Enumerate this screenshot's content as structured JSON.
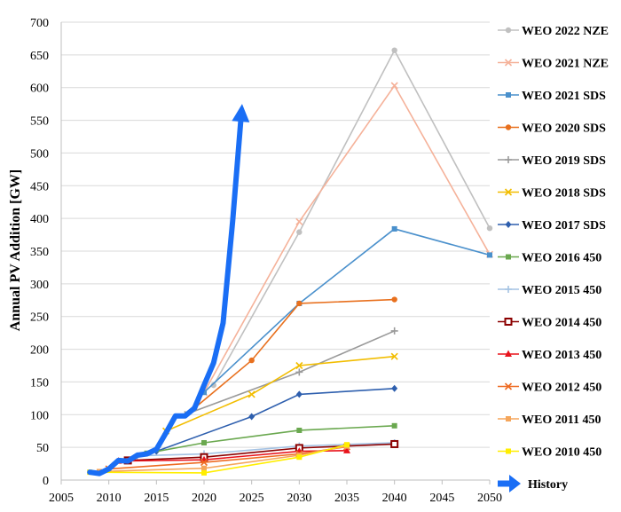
{
  "chart_data": {
    "type": "line",
    "title": "",
    "xlabel": "",
    "ylabel": "Annual PV Addition [GW]",
    "xlim": [
      2005,
      2050
    ],
    "ylim": [
      0,
      700
    ],
    "xticks": [
      2005,
      2010,
      2015,
      2020,
      2025,
      2030,
      2035,
      2040,
      2045,
      2050
    ],
    "yticks": [
      0,
      50,
      100,
      150,
      200,
      250,
      300,
      350,
      400,
      450,
      500,
      550,
      600,
      650,
      700
    ],
    "grid": "horizontal",
    "legend_position": "right",
    "series": [
      {
        "name": "WEO 2022 NZE",
        "color": "#c0c0c0",
        "marker": "circle",
        "x": [
          2021,
          2030,
          2040,
          2050
        ],
        "y": [
          145,
          379,
          657,
          385
        ]
      },
      {
        "name": "WEO 2021 NZE",
        "color": "#f5b29a",
        "marker": "x",
        "x": [
          2020,
          2030,
          2040,
          2050
        ],
        "y": [
          134,
          395,
          603,
          345
        ]
      },
      {
        "name": "WEO 2021 SDS",
        "color": "#4a90cc",
        "marker": "square",
        "x": [
          2020,
          2030,
          2040,
          2050
        ],
        "y": [
          134,
          270,
          384,
          344
        ]
      },
      {
        "name": "WEO 2020 SDS",
        "color": "#e8701e",
        "marker": "circle",
        "x": [
          2019,
          2025,
          2030,
          2040
        ],
        "y": [
          110,
          183,
          270,
          276
        ]
      },
      {
        "name": "WEO 2019 SDS",
        "color": "#9a9a9a",
        "marker": "plus",
        "x": [
          2018,
          2030,
          2040
        ],
        "y": [
          100,
          165,
          228
        ]
      },
      {
        "name": "WEO 2018 SDS",
        "color": "#f2bd00",
        "marker": "x",
        "x": [
          2016,
          2025,
          2030,
          2040
        ],
        "y": [
          75,
          131,
          175,
          189
        ]
      },
      {
        "name": "WEO 2017 SDS",
        "color": "#2e5fae",
        "marker": "diamond",
        "x": [
          2015,
          2025,
          2030,
          2040
        ],
        "y": [
          44,
          97,
          131,
          140
        ]
      },
      {
        "name": "WEO 2016 450",
        "color": "#6aa84f",
        "marker": "square",
        "x": [
          2014,
          2020,
          2030,
          2040
        ],
        "y": [
          41,
          57,
          76,
          83
        ]
      },
      {
        "name": "WEO 2015 450",
        "color": "#a4c2e3",
        "marker": "plus",
        "x": [
          2013,
          2020,
          2030,
          2040
        ],
        "y": [
          37,
          40,
          52,
          57
        ]
      },
      {
        "name": "WEO 2014 450",
        "color": "#8b0000",
        "marker": "square-open",
        "x": [
          2012,
          2020,
          2030,
          2040
        ],
        "y": [
          30,
          35,
          49,
          55
        ]
      },
      {
        "name": "WEO 2013 450",
        "color": "#e8131c",
        "marker": "triangle",
        "x": [
          2011,
          2020,
          2030,
          2035
        ],
        "y": [
          29,
          31,
          44,
          45
        ]
      },
      {
        "name": "WEO 2012 450",
        "color": "#ee6b22",
        "marker": "x",
        "x": [
          2010,
          2020,
          2030,
          2035
        ],
        "y": [
          17,
          27,
          40,
          51
        ]
      },
      {
        "name": "WEO 2011 450",
        "color": "#f5a65b",
        "marker": "square",
        "x": [
          2009,
          2020,
          2030,
          2035
        ],
        "y": [
          13,
          18,
          38,
          52
        ]
      },
      {
        "name": "WEO 2010 450",
        "color": "#ffee00",
        "marker": "square",
        "x": [
          2008,
          2020,
          2030,
          2035
        ],
        "y": [
          12,
          11,
          35,
          54
        ]
      },
      {
        "name": "History",
        "color": "#1a6ef5",
        "marker": "arrow",
        "x": [
          2008,
          2009,
          2010,
          2011,
          2012,
          2013,
          2014,
          2015,
          2016,
          2017,
          2018,
          2019,
          2020,
          2021,
          2022,
          2023,
          2024
        ],
        "y": [
          12,
          10,
          17,
          30,
          29,
          38,
          40,
          47,
          72,
          98,
          98,
          110,
          145,
          179,
          240,
          395,
          575
        ]
      }
    ]
  }
}
